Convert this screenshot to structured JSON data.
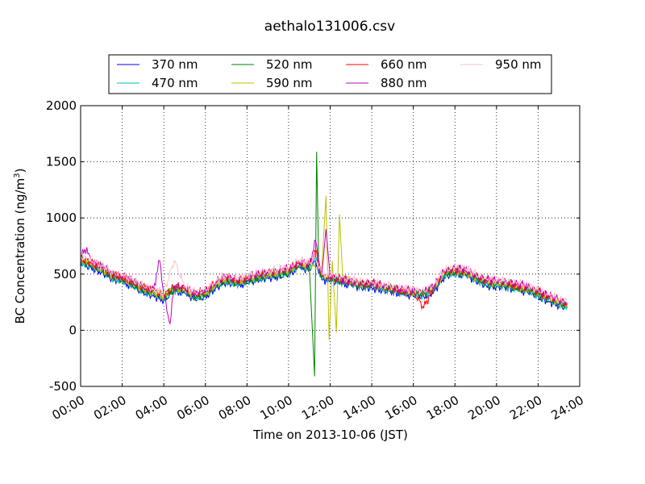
{
  "chart_data": {
    "type": "line",
    "title": "aethalo131006.csv",
    "xlabel": "Time on 2013-10-06 (JST)",
    "ylabel": "BC Concentration (ng/m",
    "ylabel_unit_superscript": "3",
    "ylabel_close": ")",
    "xlim": [
      0,
      24
    ],
    "ylim": [
      -500,
      2000
    ],
    "x_ticks": [
      "00:00",
      "02:00",
      "04:00",
      "06:00",
      "08:00",
      "10:00",
      "12:00",
      "14:00",
      "16:00",
      "18:00",
      "20:00",
      "22:00",
      "24:00"
    ],
    "y_ticks": [
      "-500",
      "0",
      "500",
      "1000",
      "1500",
      "2000"
    ],
    "grid": true,
    "legend_placement": "top",
    "x_unit": "hours",
    "series": [
      {
        "name": "370 nm",
        "color": "#0000ff",
        "x": [
          0,
          0.5,
          1,
          1.5,
          2,
          2.5,
          3,
          3.5,
          4,
          4.5,
          5,
          5.5,
          6,
          6.5,
          7,
          7.5,
          8,
          8.5,
          9,
          9.5,
          10,
          10.5,
          11,
          11.3,
          11.6,
          12,
          12.5,
          13,
          13.5,
          14,
          14.5,
          15,
          15.5,
          16,
          16.5,
          17,
          17.5,
          18,
          18.5,
          19,
          19.5,
          20,
          20.5,
          21,
          21.5,
          22,
          22.5,
          23,
          23.4
        ],
        "y": [
          600,
          560,
          520,
          460,
          430,
          390,
          340,
          310,
          270,
          350,
          330,
          280,
          300,
          380,
          430,
          400,
          420,
          450,
          470,
          480,
          500,
          560,
          540,
          620,
          450,
          440,
          420,
          400,
          380,
          380,
          360,
          340,
          320,
          310,
          300,
          350,
          480,
          500,
          490,
          440,
          400,
          390,
          380,
          360,
          340,
          300,
          260,
          220,
          200
        ]
      },
      {
        "name": "470 nm",
        "color": "#00bfbf",
        "x": [
          0,
          0.5,
          1,
          1.5,
          2,
          2.5,
          3,
          3.5,
          4,
          4.5,
          5,
          5.5,
          6,
          6.5,
          7,
          7.5,
          8,
          8.5,
          9,
          9.5,
          10,
          10.5,
          11,
          11.3,
          11.6,
          12,
          12.5,
          13,
          13.5,
          14,
          14.5,
          15,
          15.5,
          16,
          16.5,
          17,
          17.5,
          18,
          18.5,
          19,
          19.5,
          20,
          20.5,
          21,
          21.5,
          22,
          22.5,
          23,
          23.4
        ],
        "y": [
          610,
          570,
          530,
          470,
          440,
          400,
          350,
          320,
          280,
          360,
          340,
          290,
          310,
          390,
          440,
          410,
          430,
          460,
          480,
          490,
          510,
          570,
          550,
          630,
          460,
          450,
          430,
          410,
          390,
          390,
          370,
          350,
          330,
          320,
          310,
          360,
          490,
          510,
          500,
          450,
          410,
          400,
          390,
          370,
          350,
          310,
          270,
          230,
          210
        ]
      },
      {
        "name": "520 nm",
        "color": "#008000",
        "x": [
          0,
          0.5,
          1,
          1.5,
          2,
          2.5,
          3,
          3.5,
          4,
          4.5,
          5,
          5.5,
          6,
          6.5,
          7,
          7.5,
          8,
          8.5,
          9,
          9.5,
          10,
          10.5,
          11,
          11.25,
          11.35,
          11.45,
          11.6,
          12,
          12.5,
          13,
          13.5,
          14,
          14.5,
          15,
          15.5,
          16,
          16.5,
          17,
          17.5,
          18,
          18.5,
          19,
          19.5,
          20,
          20.5,
          21,
          21.5,
          22,
          22.5,
          23,
          23.4
        ],
        "y": [
          620,
          580,
          540,
          480,
          450,
          410,
          360,
          330,
          290,
          370,
          350,
          300,
          320,
          400,
          450,
          420,
          440,
          470,
          490,
          500,
          520,
          580,
          560,
          -410,
          1590,
          600,
          470,
          460,
          440,
          420,
          400,
          400,
          380,
          360,
          340,
          330,
          320,
          370,
          500,
          520,
          510,
          460,
          420,
          410,
          400,
          380,
          360,
          320,
          280,
          240,
          220
        ]
      },
      {
        "name": "590 nm",
        "color": "#bfbf00",
        "x": [
          0,
          0.5,
          1,
          1.5,
          2,
          2.5,
          3,
          3.5,
          4,
          4.5,
          5,
          5.5,
          6,
          6.5,
          7,
          7.5,
          8,
          8.5,
          9,
          9.5,
          10,
          10.5,
          11,
          11.6,
          11.8,
          11.95,
          12.1,
          12.3,
          12.45,
          12.6,
          13,
          13.5,
          14,
          14.5,
          15,
          15.5,
          16,
          16.5,
          17,
          17.5,
          18,
          18.5,
          19,
          19.5,
          20,
          20.5,
          21,
          21.5,
          22,
          22.5,
          23,
          23.4
        ],
        "y": [
          630,
          590,
          550,
          490,
          460,
          420,
          370,
          340,
          300,
          380,
          360,
          310,
          330,
          410,
          460,
          430,
          450,
          480,
          500,
          510,
          530,
          590,
          570,
          560,
          1200,
          -90,
          620,
          -20,
          1030,
          480,
          430,
          410,
          410,
          390,
          370,
          350,
          340,
          330,
          380,
          510,
          530,
          520,
          470,
          430,
          420,
          410,
          390,
          370,
          330,
          290,
          250,
          230
        ]
      },
      {
        "name": "660 nm",
        "color": "#ff0000",
        "x": [
          0,
          0.5,
          1,
          1.5,
          2,
          2.5,
          3,
          3.5,
          4,
          4.5,
          5,
          5.5,
          6,
          6.5,
          7,
          7.5,
          8,
          8.5,
          9,
          9.5,
          10,
          10.5,
          11,
          11.3,
          11.6,
          12,
          12.5,
          13,
          13.5,
          14,
          14.5,
          15,
          15.5,
          16,
          16.5,
          17,
          17.5,
          18,
          18.5,
          19,
          19.5,
          20,
          20.5,
          21,
          21.5,
          22,
          22.5,
          23,
          23.4
        ],
        "y": [
          640,
          600,
          560,
          500,
          470,
          430,
          380,
          350,
          310,
          390,
          370,
          320,
          340,
          420,
          470,
          440,
          460,
          490,
          510,
          520,
          540,
          600,
          580,
          700,
          480,
          470,
          450,
          430,
          410,
          410,
          390,
          370,
          350,
          340,
          200,
          390,
          520,
          540,
          530,
          480,
          440,
          430,
          420,
          400,
          380,
          340,
          300,
          260,
          240
        ]
      },
      {
        "name": "880 nm",
        "color": "#bf00bf",
        "x": [
          0,
          0.3,
          0.5,
          1,
          1.5,
          2,
          2.5,
          3,
          3.5,
          3.8,
          4,
          4.3,
          4.5,
          5,
          5.5,
          6,
          6.5,
          7,
          7.5,
          8,
          8.5,
          9,
          9.5,
          10,
          10.5,
          11,
          11.3,
          11.6,
          11.8,
          12,
          12.5,
          13,
          13.5,
          14,
          14.5,
          15,
          15.5,
          16,
          16.5,
          17,
          17.5,
          18,
          18.5,
          19,
          19.5,
          20,
          20.5,
          21,
          21.5,
          22,
          22.5,
          23,
          23.4
        ],
        "y": [
          650,
          740,
          610,
          570,
          510,
          480,
          440,
          390,
          360,
          620,
          320,
          60,
          400,
          380,
          330,
          350,
          430,
          480,
          450,
          470,
          500,
          520,
          530,
          550,
          610,
          590,
          790,
          490,
          900,
          480,
          460,
          440,
          420,
          420,
          400,
          380,
          360,
          350,
          340,
          400,
          530,
          550,
          540,
          490,
          450,
          440,
          430,
          410,
          390,
          350,
          310,
          270,
          250
        ]
      },
      {
        "name": "950 nm",
        "color": "#ffc0cb",
        "x": [
          0,
          0.5,
          1,
          1.5,
          2,
          2.5,
          3,
          3.5,
          4,
          4.5,
          5,
          5.5,
          6,
          6.5,
          7,
          7.5,
          8,
          8.5,
          9,
          9.5,
          10,
          10.5,
          11,
          11.3,
          11.6,
          12,
          12.5,
          13,
          13.5,
          14,
          14.5,
          15,
          15.5,
          16,
          16.5,
          17,
          17.5,
          18,
          18.5,
          19,
          19.5,
          20,
          20.5,
          21,
          21.5,
          22,
          22.5,
          23,
          23.4
        ],
        "y": [
          660,
          620,
          580,
          520,
          490,
          450,
          400,
          370,
          330,
          620,
          390,
          340,
          360,
          440,
          490,
          460,
          480,
          510,
          530,
          540,
          560,
          620,
          600,
          640,
          500,
          490,
          470,
          450,
          430,
          430,
          410,
          390,
          370,
          360,
          350,
          410,
          540,
          560,
          550,
          500,
          460,
          450,
          440,
          420,
          400,
          360,
          320,
          280,
          260
        ]
      }
    ]
  }
}
